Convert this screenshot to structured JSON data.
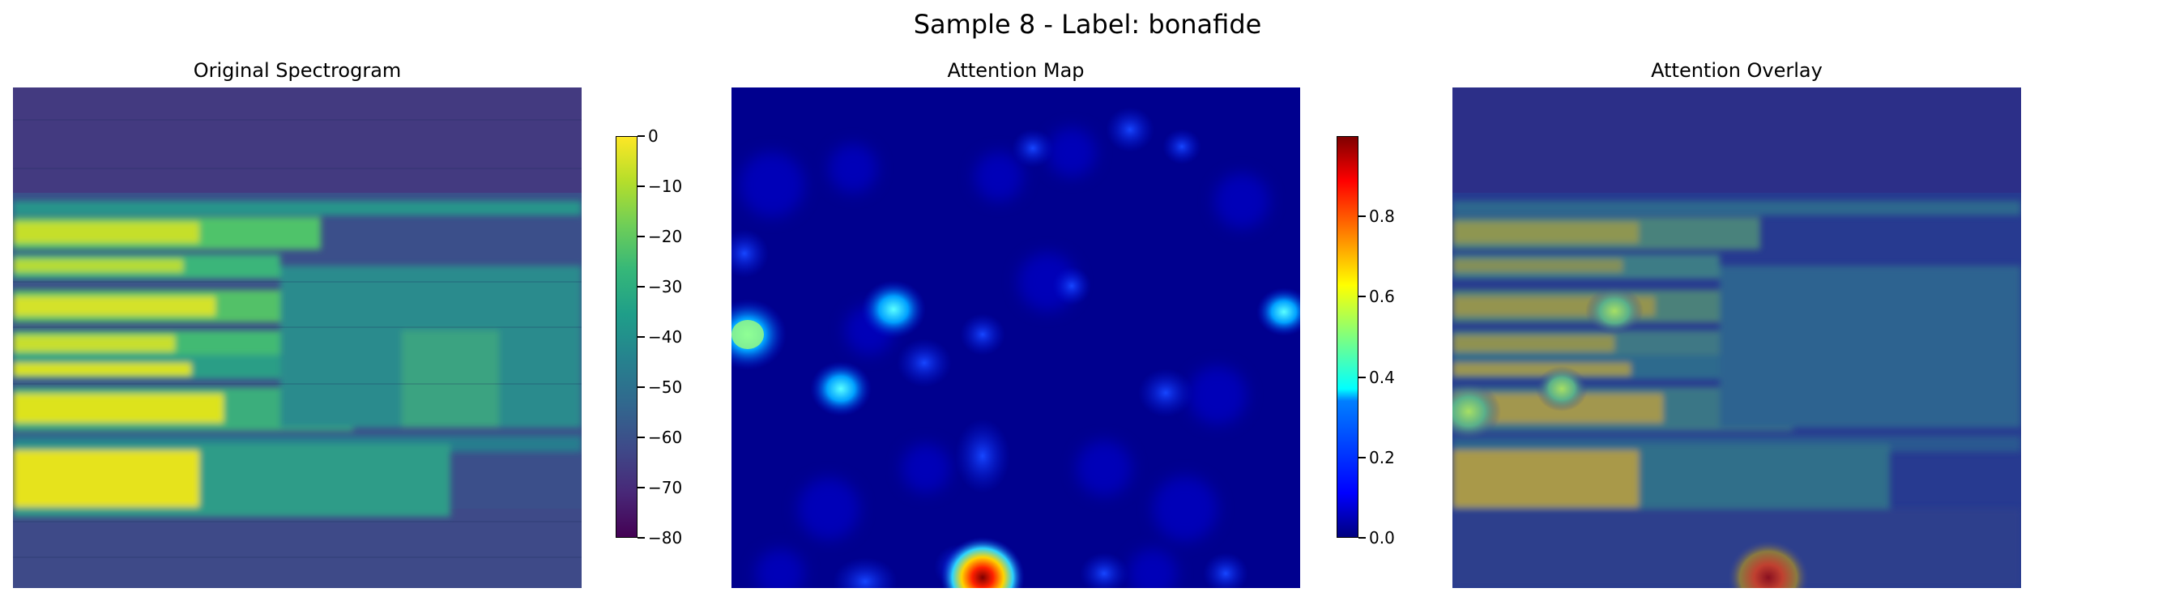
{
  "figure": {
    "suptitle": "Sample 8 - Label: bonafide"
  },
  "chart_data": [
    {
      "type": "heatmap",
      "title": "Original Spectrogram",
      "axes_visible": false,
      "colormap": "viridis",
      "colorbar": {
        "range": [
          -80,
          0
        ],
        "ticks": [
          0,
          -10,
          -20,
          -30,
          -40,
          -50,
          -60,
          -70,
          -80
        ],
        "tick_labels": [
          "0",
          "−10",
          "−20",
          "−30",
          "−40",
          "−50",
          "−60",
          "−70",
          "−80"
        ]
      }
    },
    {
      "type": "heatmap",
      "title": "Attention Map",
      "axes_visible": false,
      "colormap": "jet",
      "peak": {
        "x": 0.44,
        "y": 0.97,
        "value": 1.0
      },
      "colorbar": {
        "range": [
          0,
          1
        ],
        "ticks": [
          0.0,
          0.2,
          0.4,
          0.6,
          0.8
        ],
        "tick_labels": [
          "0.0",
          "0.2",
          "0.4",
          "0.6",
          "0.8"
        ]
      }
    },
    {
      "type": "heatmap",
      "title": "Attention Overlay",
      "axes_visible": false,
      "composite": "spectrogram with attention map overlaid"
    }
  ]
}
